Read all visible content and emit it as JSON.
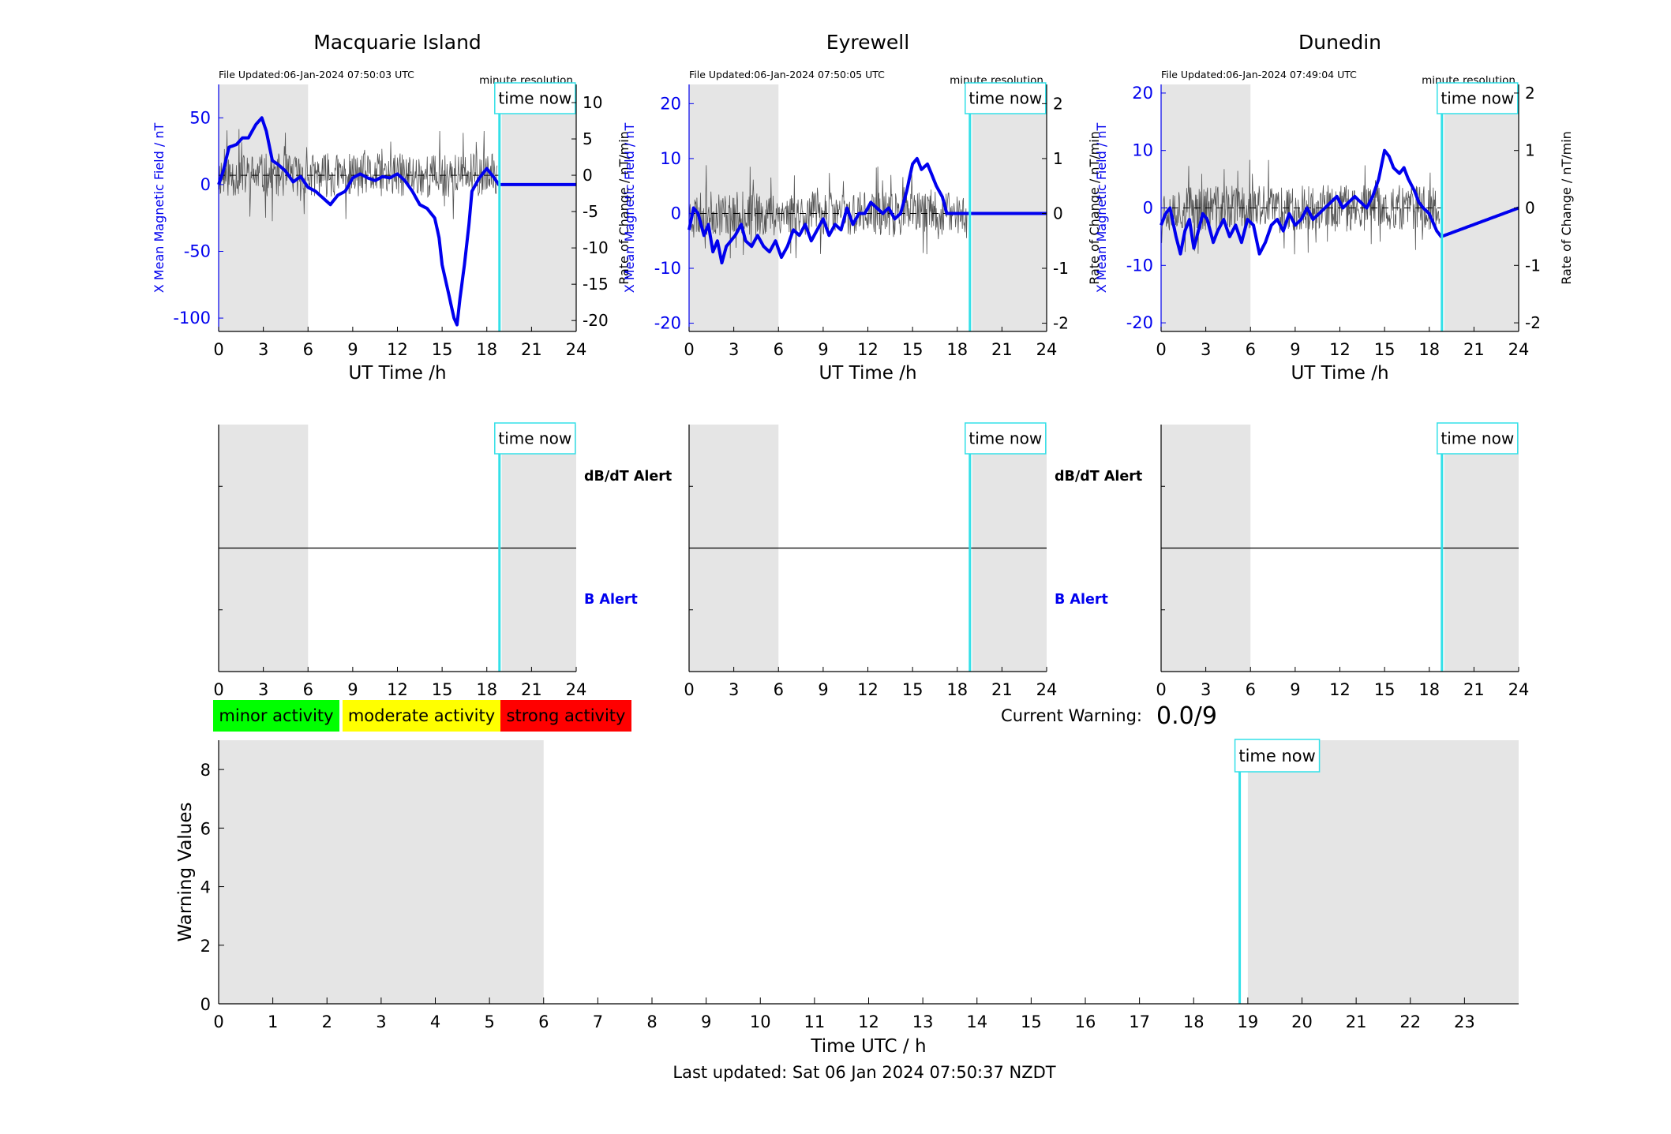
{
  "colors": {
    "field": "#0000ee",
    "rate": "#555555",
    "now": "#33e0e8",
    "shade": "#e5e5e5",
    "minor": "#00ff00",
    "moderate": "#ffff00",
    "strong": "#ff0000",
    "axis": "#000000",
    "b_alert": "#0000ee"
  },
  "labels": {
    "time_now": "time now",
    "minute_resolution": "minute resolution",
    "ut_time": "UT Time /h",
    "x_field": "X Mean Magnetic Field / nT",
    "rate": "Rate of Change / nT/min",
    "dbdt_alert": "dB/dT Alert",
    "b_alert": "B Alert",
    "current_warning": "Current Warning:",
    "current_warning_value": "0.0/9",
    "legend": [
      "minor activity",
      "moderate activity",
      "strong activity"
    ],
    "warning_ylabel": "Warning Values",
    "warning_xlabel": "Time UTC / h",
    "last_updated": "Last updated: Sat 06 Jan 2024 07:50:37 NZDT"
  },
  "chart_data": [
    {
      "type": "line",
      "title": "Macquarie Island",
      "file_updated": "File Updated:06-Jan-2024 07:50:03 UTC",
      "xlabel": "UT Time /h",
      "ylabel_left": "X Mean Magnetic Field / nT",
      "ylabel_right": "Rate of Change / nT/min",
      "xlim": [
        0,
        24
      ],
      "ylim_left": [
        -110,
        75
      ],
      "ylim_right": [
        -21.5,
        12.5
      ],
      "xticks": [
        0,
        3,
        6,
        9,
        12,
        15,
        18,
        21,
        24
      ],
      "yticks_left": [
        -100,
        -50,
        0,
        50
      ],
      "yticks_right": [
        -20,
        -15,
        -10,
        -5,
        0,
        5,
        10
      ],
      "shaded_ranges": [
        [
          0,
          6
        ],
        [
          19,
          24
        ]
      ],
      "time_now": 18.85,
      "rate_amp": 3,
      "rate_seed": 11,
      "field": {
        "x": [
          0,
          0.3,
          0.7,
          1.2,
          1.6,
          2.0,
          2.5,
          2.9,
          3.2,
          3.6,
          4.0,
          4.5,
          5.0,
          5.5,
          6.0,
          6.5,
          7.0,
          7.5,
          8.0,
          8.5,
          9.0,
          9.5,
          10.0,
          10.5,
          11.0,
          11.5,
          12.0,
          12.5,
          13.0,
          13.5,
          14.0,
          14.5,
          14.8,
          15.0,
          15.3,
          15.6,
          15.8,
          16.0,
          16.2,
          16.5,
          16.8,
          17.0,
          17.5,
          18.0,
          18.5,
          18.8,
          24
        ],
        "y": [
          0,
          10,
          28,
          30,
          35,
          35,
          45,
          50,
          40,
          18,
          15,
          10,
          2,
          6,
          -2,
          -5,
          -10,
          -15,
          -8,
          -5,
          5,
          8,
          5,
          3,
          6,
          5,
          8,
          3,
          -5,
          -15,
          -18,
          -25,
          -40,
          -60,
          -75,
          -90,
          -100,
          -105,
          -85,
          -60,
          -30,
          -5,
          5,
          12,
          5,
          0,
          0
        ]
      }
    },
    {
      "type": "line",
      "title": "Eyrewell",
      "file_updated": "File Updated:06-Jan-2024 07:50:05 UTC",
      "xlabel": "UT Time /h",
      "ylabel_left": "X Mean Magnetic Field / nT",
      "ylabel_right": "Rate of Change / nT/min",
      "xlim": [
        0,
        24
      ],
      "ylim_left": [
        -21.5,
        23.5
      ],
      "ylim_right": [
        -2.15,
        2.35
      ],
      "xticks": [
        0,
        3,
        6,
        9,
        12,
        15,
        18,
        21,
        24
      ],
      "yticks_left": [
        -20,
        -10,
        0,
        10,
        20
      ],
      "yticks_right": [
        -2,
        -1,
        0,
        1,
        2
      ],
      "shaded_ranges": [
        [
          0,
          6
        ],
        [
          19,
          24
        ]
      ],
      "time_now": 18.85,
      "rate_amp": 0.4,
      "rate_seed": 23,
      "field": {
        "x": [
          0,
          0.3,
          0.6,
          1.0,
          1.3,
          1.6,
          1.9,
          2.2,
          2.5,
          2.8,
          3.1,
          3.5,
          3.8,
          4.2,
          4.6,
          5.0,
          5.4,
          5.8,
          6.2,
          6.6,
          7.0,
          7.4,
          7.8,
          8.2,
          8.6,
          9.0,
          9.4,
          9.8,
          10.2,
          10.6,
          11.0,
          11.4,
          11.8,
          12.2,
          12.6,
          13.0,
          13.4,
          13.8,
          14.2,
          14.6,
          15.0,
          15.3,
          15.6,
          16.0,
          16.3,
          16.6,
          17.0,
          17.3,
          17.6,
          18.0,
          24
        ],
        "y": [
          -3,
          1,
          0,
          -4,
          -2,
          -7,
          -5,
          -9,
          -6,
          -5,
          -4,
          -2,
          -5,
          -6,
          -4,
          -6,
          -7,
          -5,
          -8,
          -6,
          -3,
          -4,
          -2,
          -5,
          -3,
          -1,
          -4,
          -2,
          -3,
          1,
          -2,
          0,
          0,
          2,
          1,
          0,
          1,
          -1,
          0,
          4,
          9,
          10,
          8,
          9,
          7,
          5,
          3,
          0,
          0,
          0,
          0
        ]
      }
    },
    {
      "type": "line",
      "title": "Dunedin",
      "file_updated": "File Updated:06-Jan-2024 07:49:04 UTC",
      "xlabel": "UT Time /h",
      "ylabel_left": "X Mean Magnetic Field / nT",
      "ylabel_right": "Rate of Change / nT/min",
      "xlim": [
        0,
        24
      ],
      "ylim_left": [
        -21.5,
        21.5
      ],
      "ylim_right": [
        -2.15,
        2.15
      ],
      "xticks": [
        0,
        3,
        6,
        9,
        12,
        15,
        18,
        21,
        24
      ],
      "yticks_left": [
        -20,
        -10,
        0,
        10,
        20
      ],
      "yticks_right": [
        -2,
        -1,
        0,
        1,
        2
      ],
      "shaded_ranges": [
        [
          0,
          6
        ],
        [
          19,
          24
        ]
      ],
      "time_now": 18.85,
      "rate_amp": 0.4,
      "rate_seed": 37,
      "field": {
        "x": [
          0,
          0.3,
          0.6,
          1.0,
          1.3,
          1.6,
          1.9,
          2.2,
          2.5,
          2.8,
          3.1,
          3.5,
          3.8,
          4.2,
          4.6,
          5.0,
          5.4,
          5.8,
          6.2,
          6.6,
          7.0,
          7.4,
          7.8,
          8.2,
          8.6,
          9.0,
          9.4,
          9.8,
          10.2,
          10.6,
          11.0,
          11.4,
          11.8,
          12.2,
          12.6,
          13.0,
          13.4,
          13.8,
          14.2,
          14.6,
          15.0,
          15.3,
          15.6,
          16.0,
          16.3,
          16.6,
          17.0,
          17.3,
          17.6,
          18.0,
          18.5,
          18.8,
          24
        ],
        "y": [
          -3,
          -1,
          0,
          -5,
          -8,
          -4,
          -2,
          -7,
          -4,
          -1,
          -2,
          -6,
          -4,
          -2,
          -5,
          -3,
          -6,
          -2,
          -3,
          -8,
          -6,
          -3,
          -2,
          -4,
          -1,
          -3,
          -2,
          0,
          -2,
          -1,
          0,
          1,
          2,
          0,
          1,
          2,
          1,
          0,
          2,
          5,
          10,
          9,
          7,
          6,
          7,
          5,
          3,
          1,
          0,
          -1,
          -4,
          -5,
          0
        ]
      }
    },
    {
      "type": "line",
      "title": "",
      "xlabel": "",
      "ylabel": "",
      "xlim": [
        0,
        24
      ],
      "xticks": [
        0,
        3,
        6,
        9,
        12,
        15,
        18,
        21,
        24
      ],
      "shaded_ranges": [
        [
          0,
          6
        ],
        [
          19,
          24
        ]
      ],
      "time_now": 18.85,
      "alert_labels": [
        "dB/dT Alert",
        "B Alert"
      ]
    },
    {
      "type": "line",
      "title": "",
      "xlim": [
        0,
        24
      ],
      "xticks": [
        0,
        3,
        6,
        9,
        12,
        15,
        18,
        21,
        24
      ],
      "shaded_ranges": [
        [
          0,
          6
        ],
        [
          19,
          24
        ]
      ],
      "time_now": 18.85,
      "alert_labels": [
        "dB/dT Alert",
        "B Alert"
      ]
    },
    {
      "type": "line",
      "title": "",
      "xlim": [
        0,
        24
      ],
      "xticks": [
        0,
        3,
        6,
        9,
        12,
        15,
        18,
        21,
        24
      ],
      "shaded_ranges": [
        [
          0,
          6
        ],
        [
          19,
          24
        ]
      ],
      "time_now": 18.85
    },
    {
      "type": "bar",
      "title": "",
      "xlabel": "Time UTC / h",
      "ylabel": "Warning Values",
      "xlim": [
        0,
        24
      ],
      "ylim": [
        0,
        9
      ],
      "xticks": [
        0,
        1,
        2,
        3,
        4,
        5,
        6,
        7,
        8,
        9,
        10,
        11,
        12,
        13,
        14,
        15,
        16,
        17,
        18,
        19,
        20,
        21,
        22,
        23
      ],
      "yticks": [
        0,
        2,
        4,
        6,
        8
      ],
      "shaded_ranges": [
        [
          0,
          6
        ],
        [
          19,
          24
        ]
      ],
      "time_now": 18.85,
      "values": []
    }
  ]
}
